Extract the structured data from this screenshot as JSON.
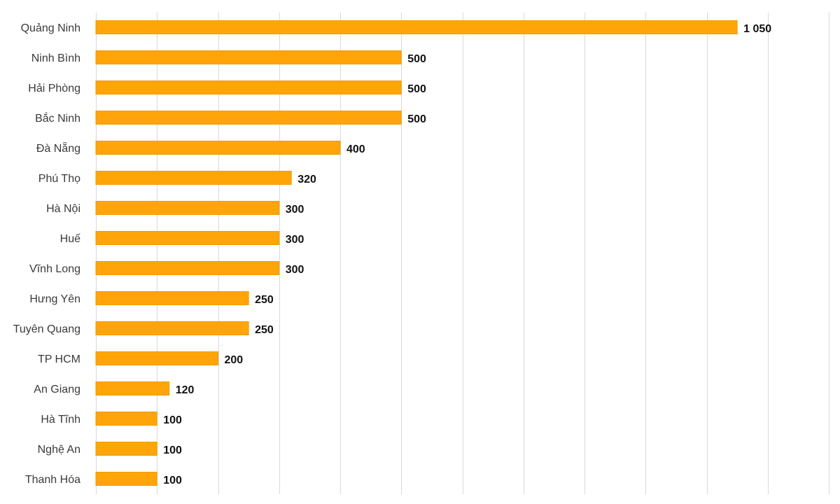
{
  "chart_data": {
    "type": "bar",
    "orientation": "horizontal",
    "categories": [
      "Quảng Ninh",
      "Ninh Bình",
      "Hải Phòng",
      "Bắc Ninh",
      "Đà Nẵng",
      "Phú Thọ",
      "Hà Nội",
      "Huế",
      "Vĩnh Long",
      "Hưng Yên",
      "Tuyên Quang",
      "TP HCM",
      "An Giang",
      "Hà Tĩnh",
      "Nghệ An",
      "Thanh Hóa"
    ],
    "values": [
      1050,
      500,
      500,
      500,
      400,
      320,
      300,
      300,
      300,
      250,
      250,
      200,
      120,
      100,
      100,
      100
    ],
    "value_labels": [
      "1 050",
      "500",
      "500",
      "500",
      "400",
      "320",
      "300",
      "300",
      "300",
      "250",
      "250",
      "200",
      "120",
      "100",
      "100",
      "100"
    ],
    "xlim": [
      0,
      1200
    ],
    "x_grid_step": 100,
    "grid": true,
    "bar_color": "#FFA50A",
    "bar_border_color": "#F29A00",
    "title": "",
    "xlabel": "",
    "ylabel": ""
  }
}
